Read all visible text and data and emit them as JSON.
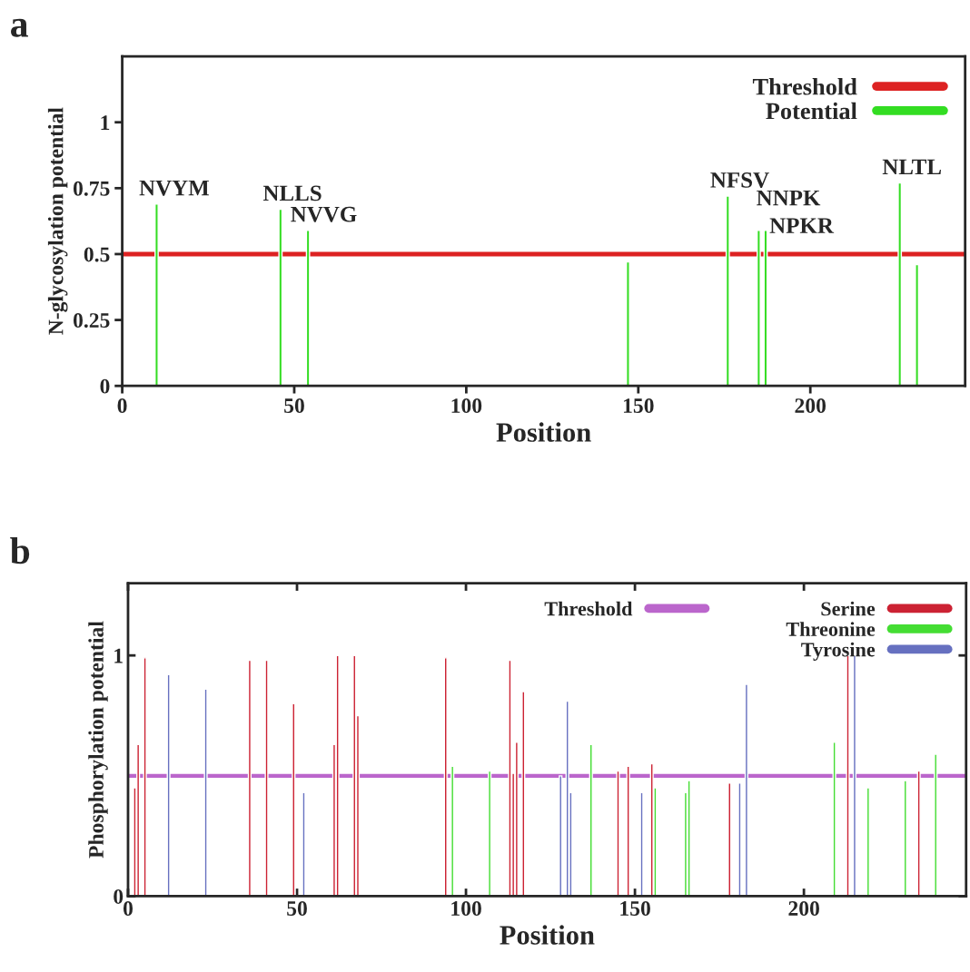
{
  "chart_data": [
    {
      "type": "bar",
      "title": "a",
      "xlabel": "Position",
      "ylabel": "N-glycosylation potential",
      "xlim": [
        0,
        245
      ],
      "xticks": [
        0,
        50,
        100,
        150,
        200
      ],
      "ylim": [
        0,
        1.25
      ],
      "yticks": [
        0,
        {
          "value": 0.25,
          "label": "0.25"
        },
        {
          "value": 0.5,
          "label": "0.5"
        },
        {
          "value": 0.75,
          "label": "0.75"
        },
        1
      ],
      "grid": false,
      "legend": "top right",
      "series": [
        {
          "name": "Potential",
          "color": "#33dd22",
          "x": [
            10,
            46,
            54,
            147,
            176,
            185,
            187,
            226,
            231
          ],
          "values": [
            0.69,
            0.67,
            0.59,
            0.47,
            0.72,
            0.59,
            0.59,
            0.77,
            0.46
          ]
        }
      ],
      "ref_lines": [
        {
          "axis": "y",
          "value": 0.5,
          "label": "Threshold",
          "color": "#dd2222"
        }
      ],
      "annotations": [
        {
          "text": "NVYM",
          "x": 10,
          "y": 0.69
        },
        {
          "text": "NLLS",
          "x": 46,
          "y": 0.67
        },
        {
          "text": "NVVG",
          "x": 54,
          "y": 0.59
        },
        {
          "text": "NFSV",
          "x": 176,
          "y": 0.72
        },
        {
          "text": "NNPK",
          "x": 185,
          "y": 0.59
        },
        {
          "text": "NPKR",
          "x": 187,
          "y": 0.59
        },
        {
          "text": "NLTL",
          "x": 226,
          "y": 0.77
        }
      ]
    },
    {
      "type": "bar",
      "title": "b",
      "xlabel": "Position",
      "ylabel": "Phosphorylation potential",
      "xlim": [
        0,
        248
      ],
      "xticks": [
        0,
        50,
        100,
        150,
        200
      ],
      "ylim": [
        0,
        1.3
      ],
      "yticks": [
        0,
        1
      ],
      "grid": false,
      "legend": "top right",
      "series": [
        {
          "name": "Serine",
          "color": "#cc2233",
          "x": [
            2,
            3,
            5,
            36,
            41,
            49,
            61,
            62,
            67,
            68,
            94,
            113,
            114,
            115,
            117,
            145,
            148,
            155,
            178,
            213,
            234
          ],
          "values": [
            0.45,
            0.63,
            0.99,
            0.98,
            0.98,
            0.8,
            0.63,
            1.0,
            1.0,
            0.75,
            0.99,
            0.98,
            0.51,
            0.64,
            0.85,
            0.52,
            0.54,
            0.55,
            0.47,
            1.0,
            0.52
          ]
        },
        {
          "name": "Threonine",
          "color": "#44dd33",
          "x": [
            96,
            107,
            137,
            156,
            165,
            166,
            209,
            219,
            230,
            239
          ],
          "values": [
            0.54,
            0.52,
            0.63,
            0.45,
            0.43,
            0.48,
            0.64,
            0.45,
            0.48,
            0.59
          ]
        },
        {
          "name": "Tyrosine",
          "color": "#6670c0",
          "x": [
            12,
            23,
            52,
            128,
            130,
            131,
            152,
            181,
            183,
            215
          ],
          "values": [
            0.92,
            0.86,
            0.43,
            0.5,
            0.81,
            0.43,
            0.43,
            0.47,
            0.88,
            1.0
          ]
        }
      ],
      "ref_lines": [
        {
          "axis": "y",
          "value": 0.5,
          "label": "Threshold",
          "color": "#bb66cc"
        }
      ]
    }
  ]
}
